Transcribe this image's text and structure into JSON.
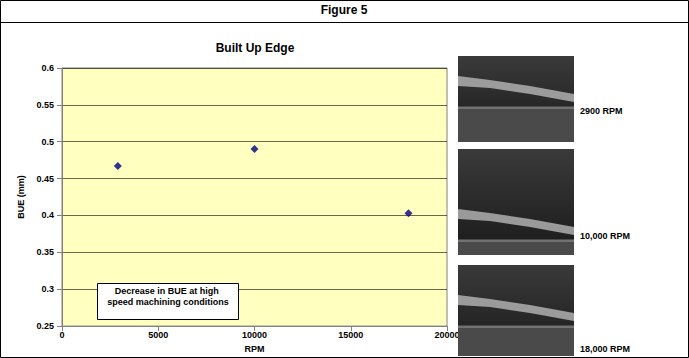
{
  "figure_title": "Figure 5",
  "chart_data": {
    "type": "scatter",
    "title": "Built Up Edge",
    "x_label": "RPM",
    "y_label": "BUE (mm)",
    "x": [
      2900,
      10000,
      18000
    ],
    "values": [
      0.467,
      0.49,
      0.403
    ],
    "color": "#000080",
    "marker": "diamond",
    "xlim": [
      0,
      20000
    ],
    "xticks": [
      0,
      5000,
      10000,
      15000,
      20000
    ],
    "ylim": [
      0.25,
      0.6
    ],
    "yticks": [
      0.25,
      0.3,
      0.35,
      0.4,
      0.45,
      0.5,
      0.55,
      0.6
    ],
    "grid": true,
    "annotation": "Decrease in BUE at high speed machining conditions"
  },
  "images": [
    {
      "label": "2900 RPM"
    },
    {
      "label": "10,000 RPM"
    },
    {
      "label": "18,000 RPM"
    }
  ]
}
